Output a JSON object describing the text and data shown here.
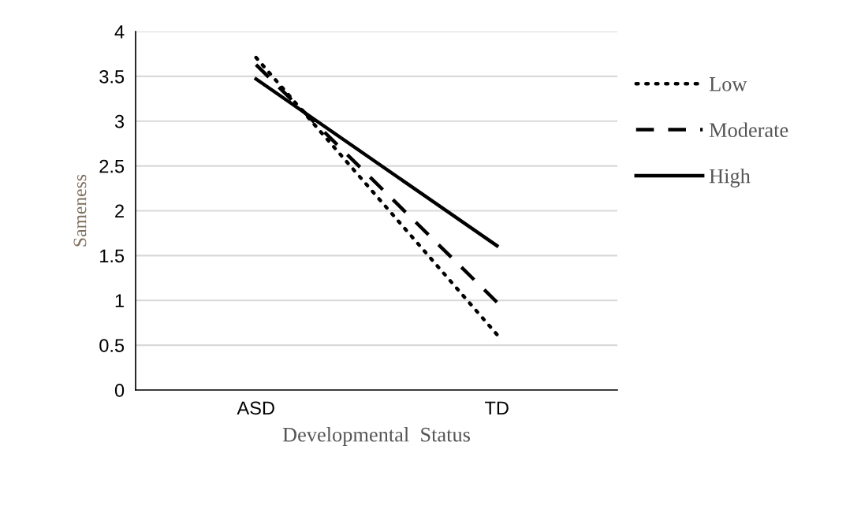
{
  "chart_data": {
    "type": "line",
    "xlabel": "Developmental  Status",
    "ylabel": "Sameness",
    "categories": [
      "ASD",
      "TD"
    ],
    "series": [
      {
        "name": "Low",
        "color": "#000000",
        "line_style": "dotted",
        "values": [
          3.71,
          0.62
        ]
      },
      {
        "name": "Moderate",
        "color": "#000000",
        "line_style": "dashed",
        "values": [
          3.63,
          0.98
        ]
      },
      {
        "name": "High",
        "color": "#000000",
        "line_style": "solid",
        "values": [
          3.47,
          1.61
        ]
      }
    ],
    "ylim": [
      0,
      4
    ],
    "yticks": [
      0,
      0.5,
      1,
      1.5,
      2,
      2.5,
      3,
      3.5,
      4
    ],
    "grid": "y",
    "legend": "right"
  }
}
